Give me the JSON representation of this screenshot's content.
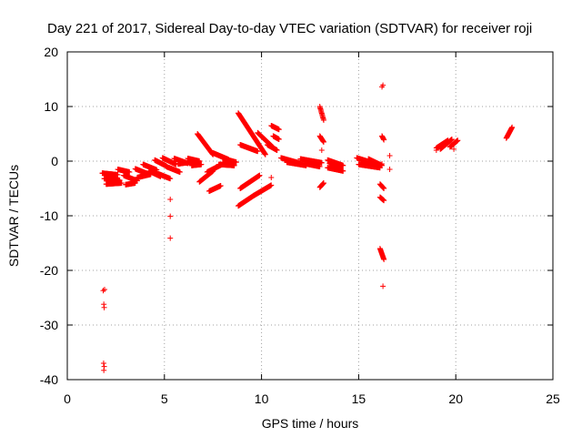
{
  "chart_data": {
    "type": "scatter",
    "title": "Day 221 of 2017, Sidereal Day-to-day VTEC variation (SDTVAR) for receiver roji",
    "xlabel": "GPS time / hours",
    "ylabel": "SDTVAR / TECUs",
    "xlim": [
      0,
      25
    ],
    "ylim": [
      -40,
      20
    ],
    "xticks": [
      "0",
      "5",
      "10",
      "15",
      "20",
      "25"
    ],
    "yticks": [
      "-40",
      "-30",
      "-20",
      "-10",
      "0",
      "10",
      "20"
    ],
    "grid": true,
    "marker": "plus",
    "color": "#ff0000",
    "segments": [
      {
        "x0": 1.8,
        "x1": 2.6,
        "y0": -2.2,
        "y1": -2.5
      },
      {
        "x0": 1.9,
        "x1": 2.7,
        "y0": -3.2,
        "y1": -3.5
      },
      {
        "x0": 2.0,
        "x1": 2.8,
        "y0": -4.2,
        "y1": -4.0
      },
      {
        "x0": 2.6,
        "x1": 3.2,
        "y0": -1.5,
        "y1": -2.0
      },
      {
        "x0": 2.9,
        "x1": 3.6,
        "y0": -2.6,
        "y1": -3.6
      },
      {
        "x0": 3.0,
        "x1": 3.5,
        "y0": -4.3,
        "y1": -4.0
      },
      {
        "x0": 3.5,
        "x1": 4.2,
        "y0": -1.4,
        "y1": -2.4
      },
      {
        "x0": 3.6,
        "x1": 4.3,
        "y0": -3.0,
        "y1": -2.4
      },
      {
        "x0": 3.9,
        "x1": 4.6,
        "y0": -0.6,
        "y1": -1.6
      },
      {
        "x0": 4.2,
        "x1": 4.8,
        "y0": -1.8,
        "y1": -2.8
      },
      {
        "x0": 4.5,
        "x1": 5.1,
        "y0": 0.2,
        "y1": -0.9
      },
      {
        "x0": 4.6,
        "x1": 5.3,
        "y0": -2.2,
        "y1": -3.2
      },
      {
        "x0": 4.9,
        "x1": 5.6,
        "y0": 0.6,
        "y1": -0.6
      },
      {
        "x0": 5.1,
        "x1": 5.8,
        "y0": -1.0,
        "y1": -2.0
      },
      {
        "x0": 5.5,
        "x1": 6.2,
        "y0": 0.5,
        "y1": -0.4
      },
      {
        "x0": 5.7,
        "x1": 6.5,
        "y0": -0.5,
        "y1": -0.1
      },
      {
        "x0": 6.2,
        "x1": 6.8,
        "y0": 0.5,
        "y1": 0.0
      },
      {
        "x0": 6.4,
        "x1": 6.9,
        "y0": -0.8,
        "y1": -0.6
      },
      {
        "x0": 6.7,
        "x1": 7.5,
        "y0": 5.0,
        "y1": 1.2
      },
      {
        "x0": 6.8,
        "x1": 7.5,
        "y0": -3.8,
        "y1": -1.8
      },
      {
        "x0": 7.2,
        "x1": 8.3,
        "y0": -2.0,
        "y1": 0.0
      },
      {
        "x0": 7.5,
        "x1": 8.3,
        "y0": 1.5,
        "y1": 0.3
      },
      {
        "x0": 7.3,
        "x1": 7.9,
        "y0": -5.5,
        "y1": -4.5
      },
      {
        "x0": 7.8,
        "x1": 8.6,
        "y0": -0.6,
        "y1": -0.8
      },
      {
        "x0": 8.0,
        "x1": 8.7,
        "y0": 0.5,
        "y1": -0.2
      },
      {
        "x0": 8.8,
        "x1": 10.2,
        "y0": 8.8,
        "y1": 1.2
      },
      {
        "x0": 8.8,
        "x1": 9.6,
        "y0": -8.2,
        "y1": -6.3
      },
      {
        "x0": 8.9,
        "x1": 9.8,
        "y0": 3.0,
        "y1": 1.8
      },
      {
        "x0": 8.9,
        "x1": 9.9,
        "y0": -5.0,
        "y1": -2.6
      },
      {
        "x0": 9.6,
        "x1": 10.5,
        "y0": -6.3,
        "y1": -4.4
      },
      {
        "x0": 9.8,
        "x1": 10.6,
        "y0": 5.2,
        "y1": 2.5
      },
      {
        "x0": 10.3,
        "x1": 10.8,
        "y0": 3.0,
        "y1": 2.0
      },
      {
        "x0": 10.5,
        "x1": 10.9,
        "y0": 6.5,
        "y1": 5.8
      },
      {
        "x0": 10.6,
        "x1": 10.9,
        "y0": 4.6,
        "y1": 4.0
      },
      {
        "x0": 11.0,
        "x1": 12.0,
        "y0": 0.6,
        "y1": -0.4
      },
      {
        "x0": 11.3,
        "x1": 12.3,
        "y0": -0.2,
        "y1": -0.8
      },
      {
        "x0": 12.0,
        "x1": 13.1,
        "y0": 0.4,
        "y1": -0.3
      },
      {
        "x0": 12.3,
        "x1": 13.0,
        "y0": -0.5,
        "y1": -1.0
      },
      {
        "x0": 13.0,
        "x1": 13.2,
        "y0": 10.0,
        "y1": 7.5
      },
      {
        "x0": 13.0,
        "x1": 13.2,
        "y0": 4.6,
        "y1": 3.5
      },
      {
        "x0": 13.0,
        "x1": 13.2,
        "y0": -4.8,
        "y1": -4.0
      },
      {
        "x0": 13.4,
        "x1": 14.2,
        "y0": 0.2,
        "y1": -0.8
      },
      {
        "x0": 13.4,
        "x1": 14.2,
        "y0": -1.2,
        "y1": -1.8
      },
      {
        "x0": 13.5,
        "x1": 14.0,
        "y0": -0.4,
        "y1": -1.2
      },
      {
        "x0": 14.9,
        "x1": 15.8,
        "y0": 0.6,
        "y1": -0.4
      },
      {
        "x0": 15.0,
        "x1": 16.1,
        "y0": -0.6,
        "y1": -1.2
      },
      {
        "x0": 15.5,
        "x1": 16.2,
        "y0": 0.4,
        "y1": -0.8
      },
      {
        "x0": 16.2,
        "x1": 16.3,
        "y0": 4.6,
        "y1": 3.9
      },
      {
        "x0": 16.1,
        "x1": 16.3,
        "y0": -4.2,
        "y1": -5.0
      },
      {
        "x0": 16.1,
        "x1": 16.3,
        "y0": -6.6,
        "y1": -7.2
      },
      {
        "x0": 16.1,
        "x1": 16.3,
        "y0": -16.0,
        "y1": -18.0
      },
      {
        "x0": 19.0,
        "x1": 19.6,
        "y0": 2.4,
        "y1": 3.8
      },
      {
        "x0": 19.2,
        "x1": 19.8,
        "y0": 2.2,
        "y1": 4.0
      },
      {
        "x0": 19.7,
        "x1": 20.1,
        "y0": 2.6,
        "y1": 3.8
      },
      {
        "x0": 22.6,
        "x1": 22.9,
        "y0": 4.2,
        "y1": 6.2
      }
    ],
    "points": [
      [
        1.85,
        -23.7
      ],
      [
        1.92,
        -23.5
      ],
      [
        1.88,
        -26.2
      ],
      [
        1.9,
        -26.8
      ],
      [
        1.87,
        -37.0
      ],
      [
        1.9,
        -37.6
      ],
      [
        1.88,
        -38.3
      ],
      [
        5.3,
        -7.0
      ],
      [
        5.3,
        -10.1
      ],
      [
        5.3,
        -14.1
      ],
      [
        10.5,
        -3.0
      ],
      [
        13.1,
        2.0
      ],
      [
        16.2,
        13.6
      ],
      [
        16.25,
        13.9
      ],
      [
        16.25,
        -22.9
      ],
      [
        16.6,
        1.0
      ],
      [
        16.6,
        -1.5
      ],
      [
        16.2,
        -0.5
      ],
      [
        19.0,
        2.0
      ],
      [
        19.9,
        2.2
      ]
    ]
  }
}
